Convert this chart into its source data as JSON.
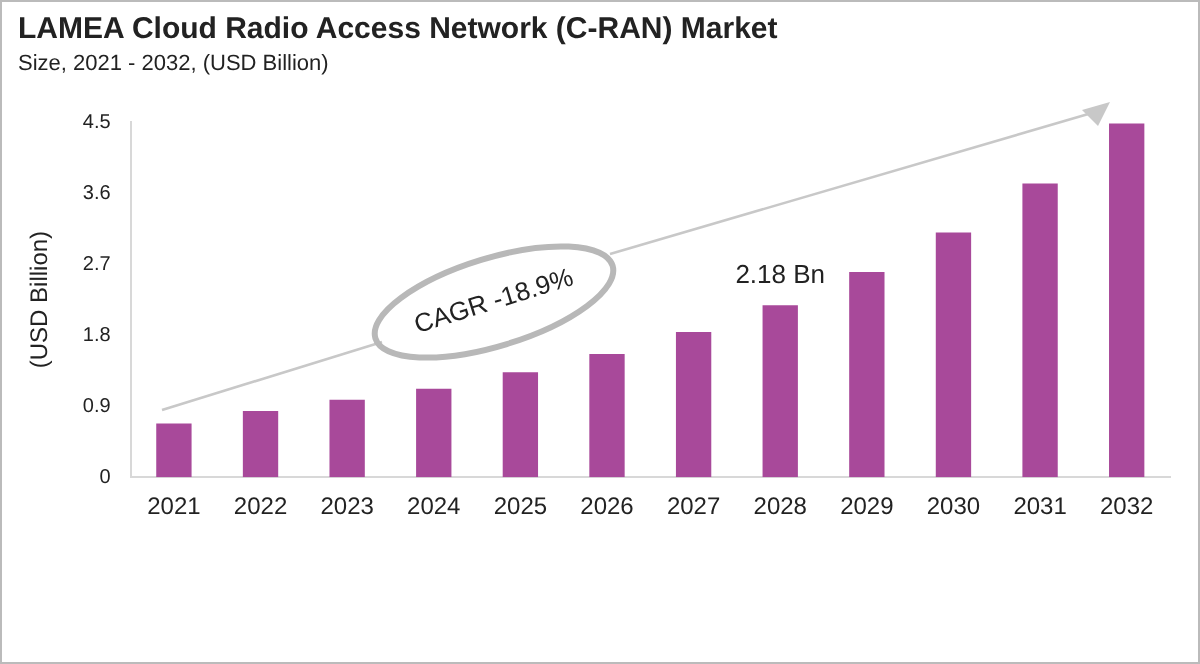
{
  "chart_data": {
    "type": "bar",
    "title": "LAMEA Cloud Radio Access Network (C-RAN) Market",
    "subtitle": "Size, 2021 - 2032, (USD Billion)",
    "ylabel": "(USD Billion)",
    "categories": [
      "2021",
      "2022",
      "2023",
      "2024",
      "2025",
      "2026",
      "2027",
      "2028",
      "2029",
      "2030",
      "2031",
      "2032"
    ],
    "values": [
      0.68,
      0.84,
      0.98,
      1.12,
      1.33,
      1.56,
      1.84,
      2.18,
      2.6,
      3.1,
      3.72,
      4.48
    ],
    "value_labels": [
      null,
      null,
      null,
      null,
      null,
      null,
      null,
      "2.18 Bn",
      null,
      null,
      null,
      null
    ],
    "color": "#a8499a",
    "ylim": [
      0,
      4.5
    ],
    "yticks": [
      0,
      0.9,
      1.8,
      2.7,
      3.6,
      4.5
    ],
    "grid": false,
    "annotations": [
      "CAGR -18.9%"
    ]
  }
}
